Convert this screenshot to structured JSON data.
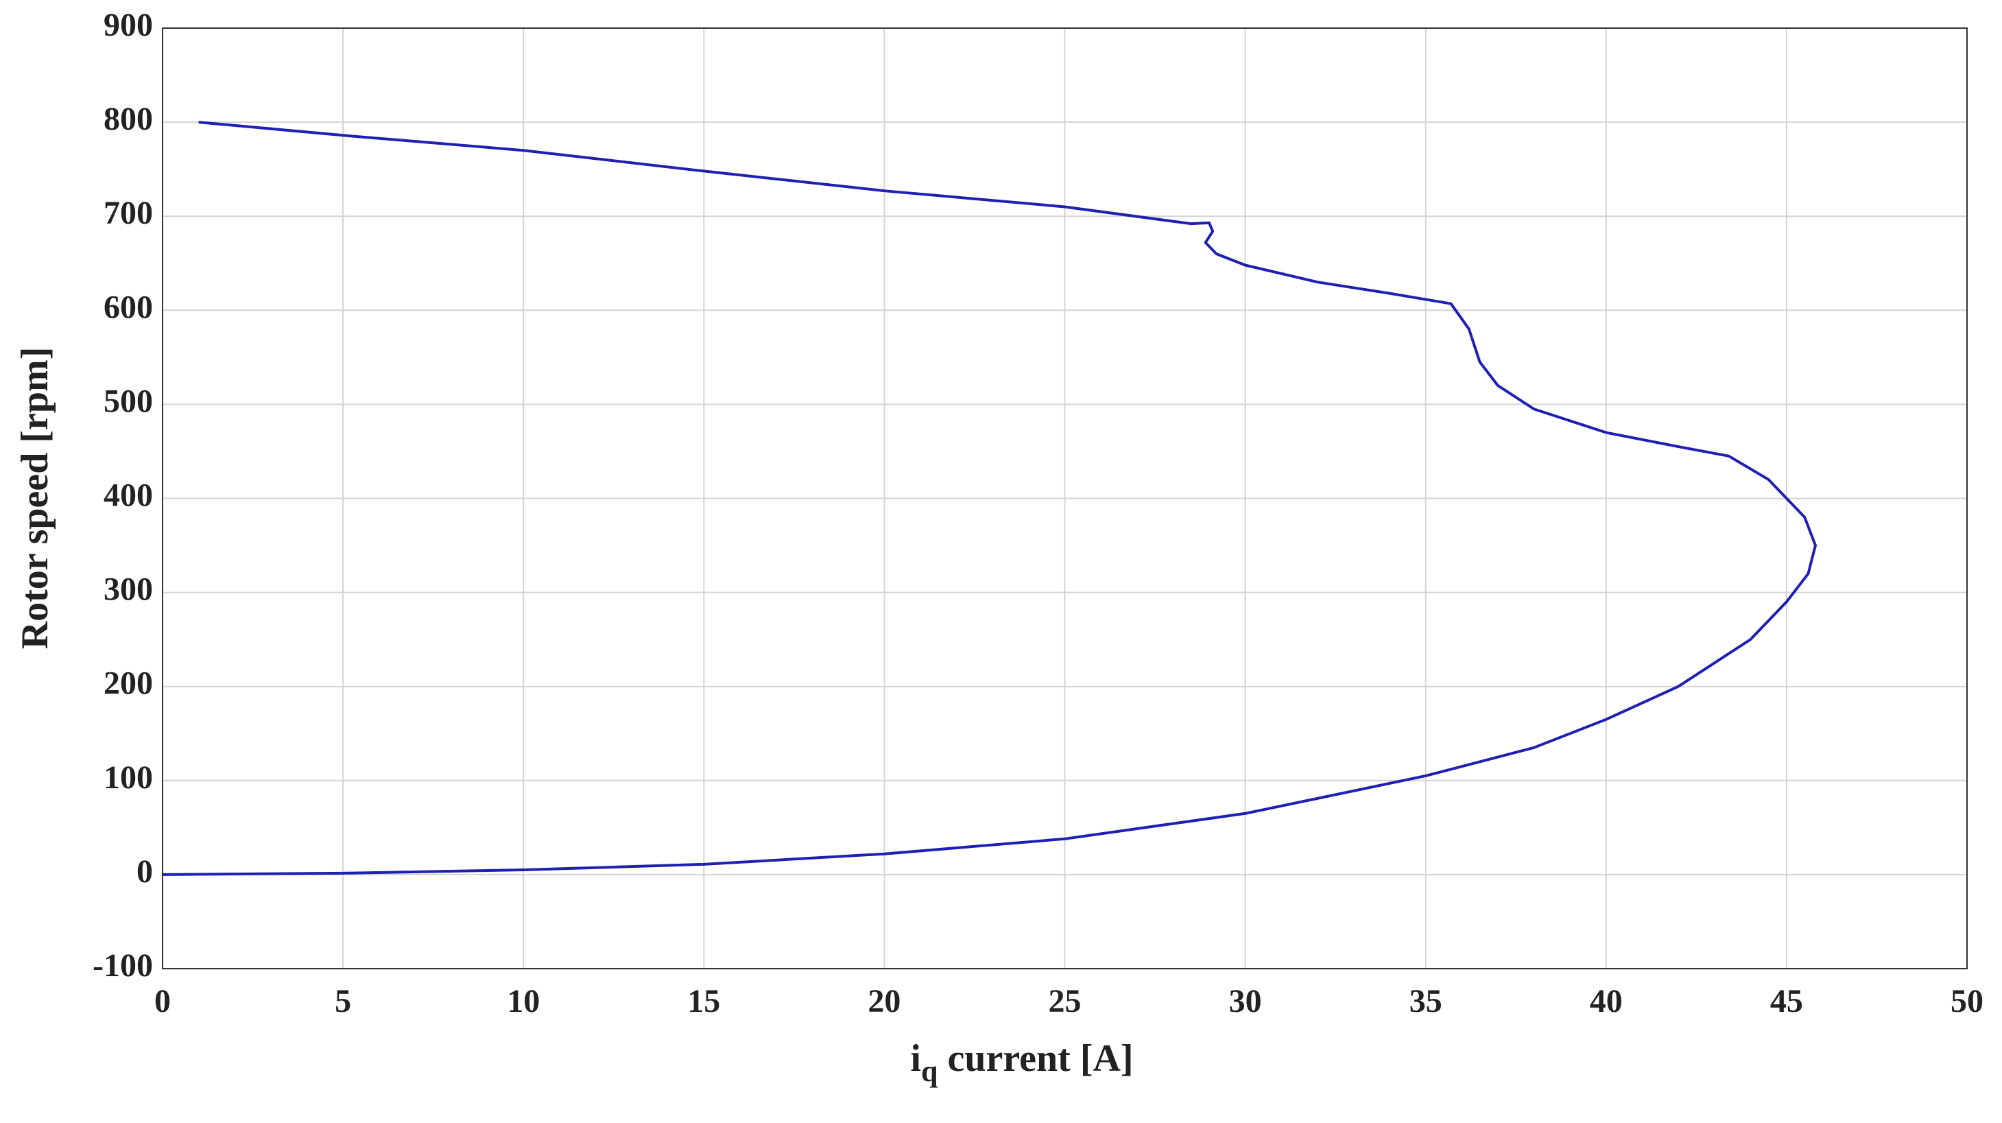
{
  "chart_data": {
    "type": "line",
    "xlabel": [
      "i",
      "q",
      "current [A]"
    ],
    "ylabel": "Rotor speed [rpm]",
    "xlim": [
      0,
      50
    ],
    "ylim": [
      -100,
      900
    ],
    "xticks": [
      0,
      5,
      10,
      15,
      20,
      25,
      30,
      35,
      40,
      45,
      50
    ],
    "yticks": [
      -100,
      0,
      100,
      200,
      300,
      400,
      500,
      600,
      700,
      800,
      900
    ],
    "grid": true,
    "series": [
      {
        "color": "#1f1fb4",
        "x": [
          0,
          5,
          10,
          15,
          20,
          25,
          30,
          35,
          38,
          40,
          42,
          44,
          45,
          45.6,
          45.8,
          45.5,
          44.5,
          43.4,
          42,
          40,
          38,
          37,
          36.5,
          36.2,
          35.7,
          34,
          32,
          30,
          29.2,
          28.9,
          29.1,
          29,
          28.5,
          25,
          20,
          15,
          10,
          5,
          1
        ],
        "y": [
          0,
          1.5,
          5,
          11,
          22,
          38,
          65,
          105,
          135,
          165,
          200,
          250,
          290,
          320,
          350,
          380,
          420,
          445,
          455,
          470,
          495,
          520,
          545,
          580,
          607,
          618,
          630,
          648,
          660,
          672,
          684,
          693,
          692,
          710,
          727,
          748,
          770,
          786,
          800
        ]
      }
    ]
  }
}
